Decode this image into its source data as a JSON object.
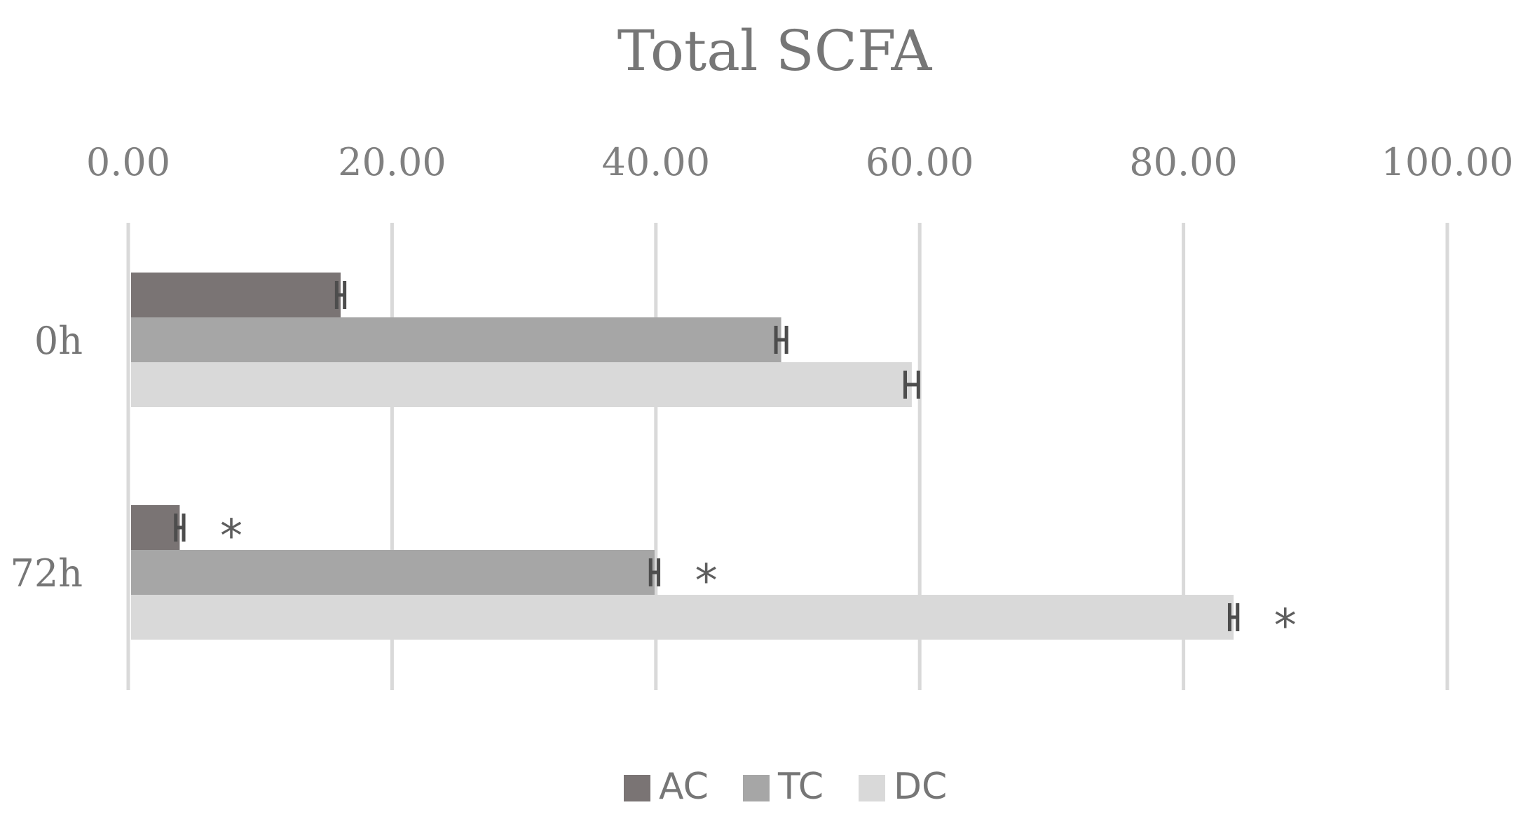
{
  "chart_data": {
    "type": "bar",
    "orientation": "horizontal",
    "title": "Total SCFA",
    "categories": [
      "0h",
      "72h"
    ],
    "xlim": [
      0,
      100
    ],
    "xticks": [
      0,
      20,
      40,
      60,
      80,
      100
    ],
    "xtick_labels": [
      "0.00",
      "20.00",
      "40.00",
      "60.00",
      "80.00",
      "100.00"
    ],
    "x_axis_position": "top",
    "grid": true,
    "legend_position": "bottom",
    "series": [
      {
        "name": "AC",
        "color": "#7a7474",
        "values": [
          16.1,
          3.9
        ],
        "errors": [
          0.3,
          0.3
        ],
        "annotations": [
          "",
          "*"
        ]
      },
      {
        "name": "TC",
        "color": "#a6a6a6",
        "values": [
          49.5,
          39.9
        ],
        "errors": [
          0.4,
          0.3
        ],
        "annotations": [
          "",
          "*"
        ]
      },
      {
        "name": "DC",
        "color": "#d9d9d9",
        "values": [
          59.4,
          83.8
        ],
        "errors": [
          0.5,
          0.3
        ],
        "annotations": [
          "",
          "*"
        ]
      }
    ]
  }
}
